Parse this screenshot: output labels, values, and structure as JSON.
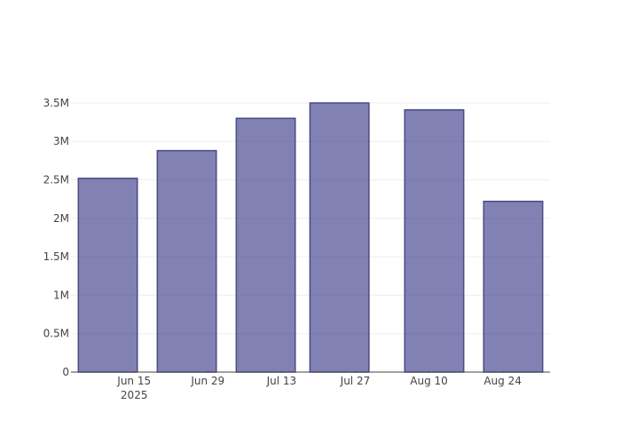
{
  "chart_data": {
    "type": "bar",
    "x": [
      "2025-06-10",
      "2025-06-25",
      "2025-07-10",
      "2025-07-24",
      "2025-08-11",
      "2025-08-26"
    ],
    "values": [
      2520000,
      2880000,
      3300000,
      3500000,
      3410000,
      2220000
    ],
    "color": "rgba(61,61,138,0.65)",
    "line_color": "#4b4b86",
    "xlim": [
      "2025-06-03",
      "2025-09-02"
    ],
    "xticks": [
      {
        "value": "2025-06-15",
        "label": "Jun 15\n2025"
      },
      {
        "value": "2025-06-29",
        "label": "Jun 29"
      },
      {
        "value": "2025-07-13",
        "label": "Jul 13"
      },
      {
        "value": "2025-07-27",
        "label": "Jul 27"
      },
      {
        "value": "2025-08-10",
        "label": "Aug 10"
      },
      {
        "value": "2025-08-24",
        "label": "Aug 24"
      }
    ],
    "ylim": [
      0,
      3684211
    ],
    "yticks": [
      0,
      {
        "value": 500000,
        "label": "0.5M"
      },
      {
        "value": 1000000,
        "label": "1M"
      },
      {
        "value": 1500000,
        "label": "1.5M"
      },
      {
        "value": 2000000,
        "label": "2M"
      },
      {
        "value": 2500000,
        "label": "2.5M"
      },
      {
        "value": 3000000,
        "label": "3M"
      },
      {
        "value": 3500000,
        "label": "3.5M"
      }
    ],
    "grid": true
  }
}
